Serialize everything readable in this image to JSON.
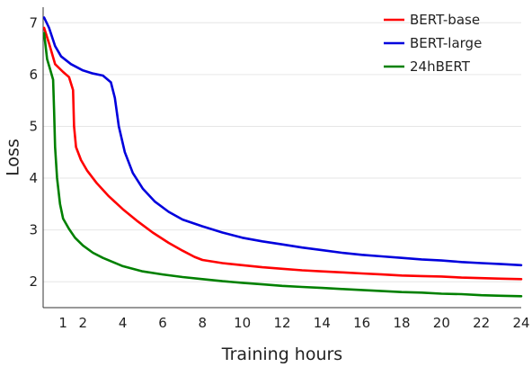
{
  "chart_data": {
    "type": "line",
    "title": "",
    "xlabel": "Training hours",
    "ylabel": "Loss",
    "xlim": [
      0,
      24
    ],
    "ylim": [
      1.5,
      7.3
    ],
    "xticks": [
      1,
      2,
      4,
      6,
      8,
      10,
      12,
      14,
      16,
      18,
      20,
      22,
      24
    ],
    "yticks": [
      2,
      3,
      4,
      5,
      6,
      7
    ],
    "grid": "horizontal",
    "legend": "top-right",
    "series": [
      {
        "name": "BERT-base",
        "color": "#ff0000",
        "points": [
          [
            0.05,
            6.9
          ],
          [
            0.3,
            6.6
          ],
          [
            0.6,
            6.2
          ],
          [
            1,
            6.05
          ],
          [
            1.3,
            5.95
          ],
          [
            1.5,
            5.7
          ],
          [
            1.55,
            5.0
          ],
          [
            1.65,
            4.6
          ],
          [
            1.9,
            4.35
          ],
          [
            2.2,
            4.15
          ],
          [
            2.7,
            3.9
          ],
          [
            3.3,
            3.65
          ],
          [
            4,
            3.4
          ],
          [
            4.7,
            3.18
          ],
          [
            5.5,
            2.95
          ],
          [
            6.3,
            2.75
          ],
          [
            7,
            2.6
          ],
          [
            7.6,
            2.48
          ],
          [
            8,
            2.42
          ],
          [
            9,
            2.36
          ],
          [
            10,
            2.32
          ],
          [
            11,
            2.28
          ],
          [
            12,
            2.25
          ],
          [
            13,
            2.22
          ],
          [
            14,
            2.2
          ],
          [
            15,
            2.18
          ],
          [
            16,
            2.16
          ],
          [
            17,
            2.14
          ],
          [
            18,
            2.12
          ],
          [
            19,
            2.11
          ],
          [
            20,
            2.1
          ],
          [
            21,
            2.08
          ],
          [
            22,
            2.07
          ],
          [
            23,
            2.06
          ],
          [
            24,
            2.05
          ]
        ]
      },
      {
        "name": "BERT-large",
        "color": "#0000dd",
        "points": [
          [
            0.05,
            7.1
          ],
          [
            0.3,
            6.9
          ],
          [
            0.6,
            6.55
          ],
          [
            0.9,
            6.35
          ],
          [
            1.4,
            6.2
          ],
          [
            2,
            6.08
          ],
          [
            2.5,
            6.02
          ],
          [
            3,
            5.98
          ],
          [
            3.4,
            5.85
          ],
          [
            3.6,
            5.55
          ],
          [
            3.8,
            5.0
          ],
          [
            4.1,
            4.5
          ],
          [
            4.5,
            4.1
          ],
          [
            5,
            3.8
          ],
          [
            5.6,
            3.55
          ],
          [
            6.3,
            3.35
          ],
          [
            7,
            3.2
          ],
          [
            8,
            3.07
          ],
          [
            9,
            2.95
          ],
          [
            10,
            2.85
          ],
          [
            11,
            2.78
          ],
          [
            12,
            2.72
          ],
          [
            13,
            2.66
          ],
          [
            14,
            2.61
          ],
          [
            15,
            2.56
          ],
          [
            16,
            2.52
          ],
          [
            17,
            2.49
          ],
          [
            18,
            2.46
          ],
          [
            19,
            2.43
          ],
          [
            20,
            2.41
          ],
          [
            21,
            2.38
          ],
          [
            22,
            2.36
          ],
          [
            23,
            2.34
          ],
          [
            24,
            2.32
          ]
        ]
      },
      {
        "name": "24hBERT",
        "color": "#008000",
        "points": [
          [
            0.05,
            6.8
          ],
          [
            0.2,
            6.3
          ],
          [
            0.35,
            6.1
          ],
          [
            0.5,
            5.9
          ],
          [
            0.55,
            5.3
          ],
          [
            0.6,
            4.6
          ],
          [
            0.7,
            4.0
          ],
          [
            0.85,
            3.5
          ],
          [
            1,
            3.22
          ],
          [
            1.3,
            3.02
          ],
          [
            1.6,
            2.85
          ],
          [
            2,
            2.7
          ],
          [
            2.5,
            2.56
          ],
          [
            3,
            2.46
          ],
          [
            3.5,
            2.38
          ],
          [
            4,
            2.3
          ],
          [
            5,
            2.2
          ],
          [
            6,
            2.14
          ],
          [
            7,
            2.09
          ],
          [
            8,
            2.05
          ],
          [
            9,
            2.01
          ],
          [
            10,
            1.98
          ],
          [
            11,
            1.95
          ],
          [
            12,
            1.92
          ],
          [
            13,
            1.9
          ],
          [
            14,
            1.88
          ],
          [
            15,
            1.86
          ],
          [
            16,
            1.84
          ],
          [
            17,
            1.82
          ],
          [
            18,
            1.8
          ],
          [
            19,
            1.79
          ],
          [
            20,
            1.77
          ],
          [
            21,
            1.76
          ],
          [
            22,
            1.74
          ],
          [
            23,
            1.73
          ],
          [
            24,
            1.72
          ]
        ]
      }
    ]
  }
}
